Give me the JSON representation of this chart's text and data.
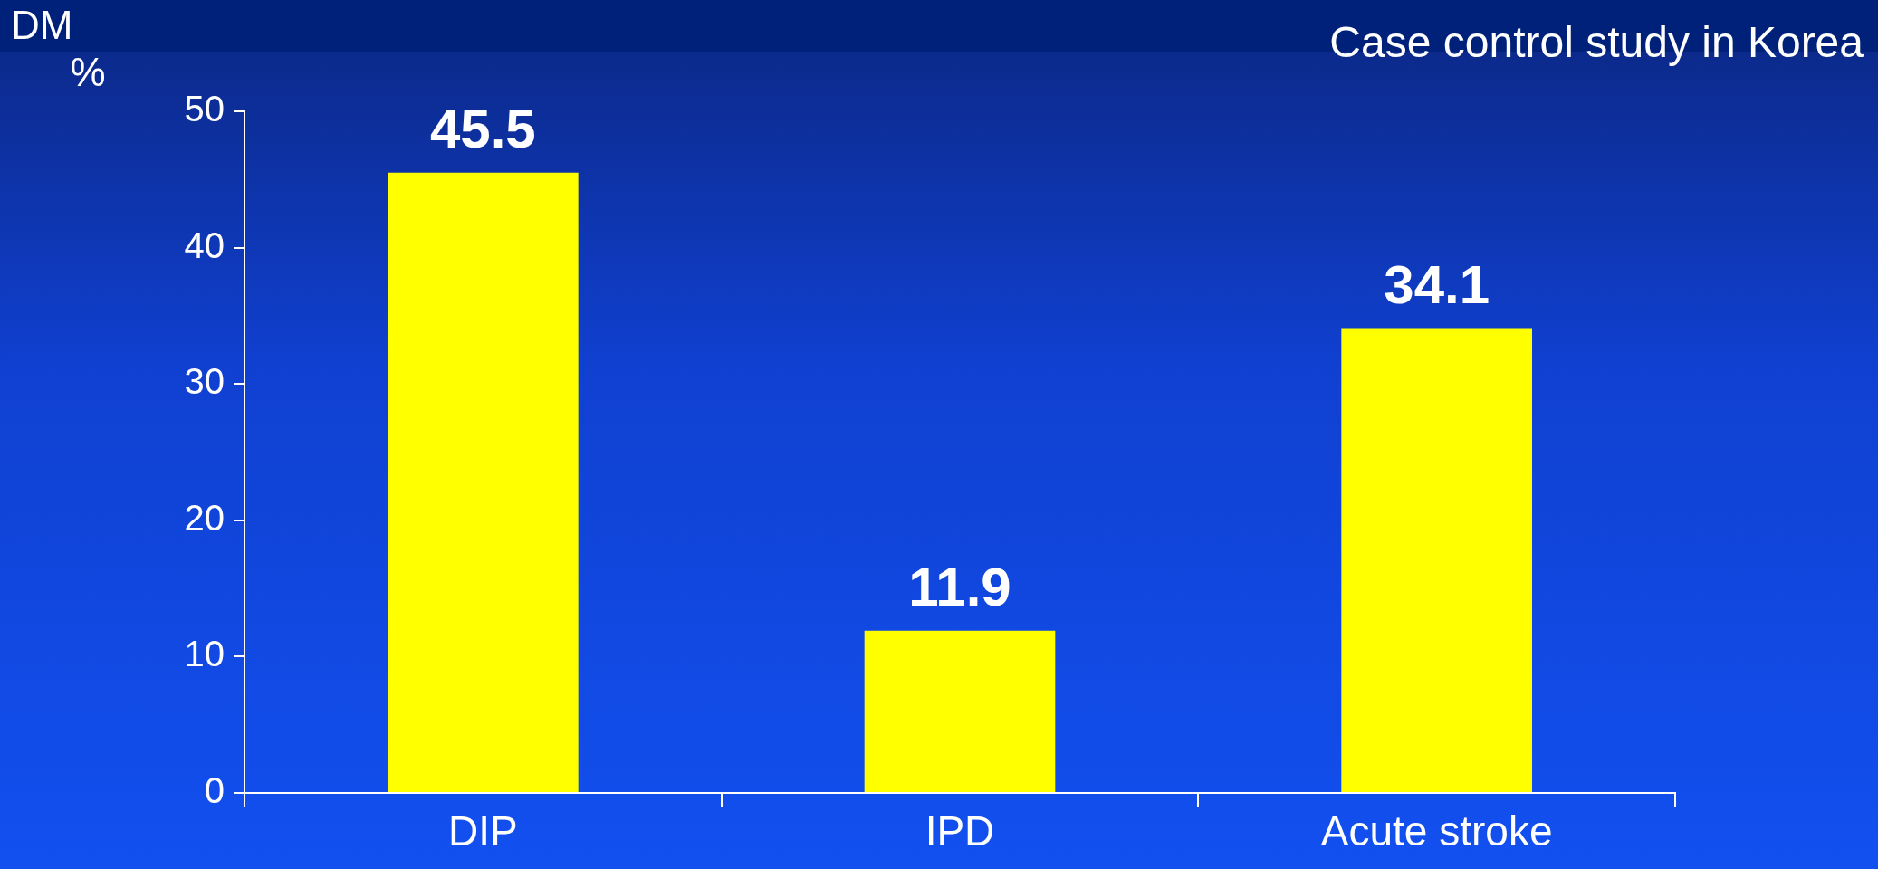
{
  "chart_data": {
    "type": "bar",
    "title": "Case control study in Korea",
    "ylabel": "DM %",
    "categories": [
      "DIP",
      "IPD",
      "Acute stroke"
    ],
    "values": [
      45.5,
      11.9,
      34.1
    ],
    "color": "#ffff00",
    "ylim": [
      0,
      50
    ],
    "yticks": [
      0,
      10,
      20,
      30,
      40,
      50
    ],
    "grid": false,
    "data_labels": true
  }
}
